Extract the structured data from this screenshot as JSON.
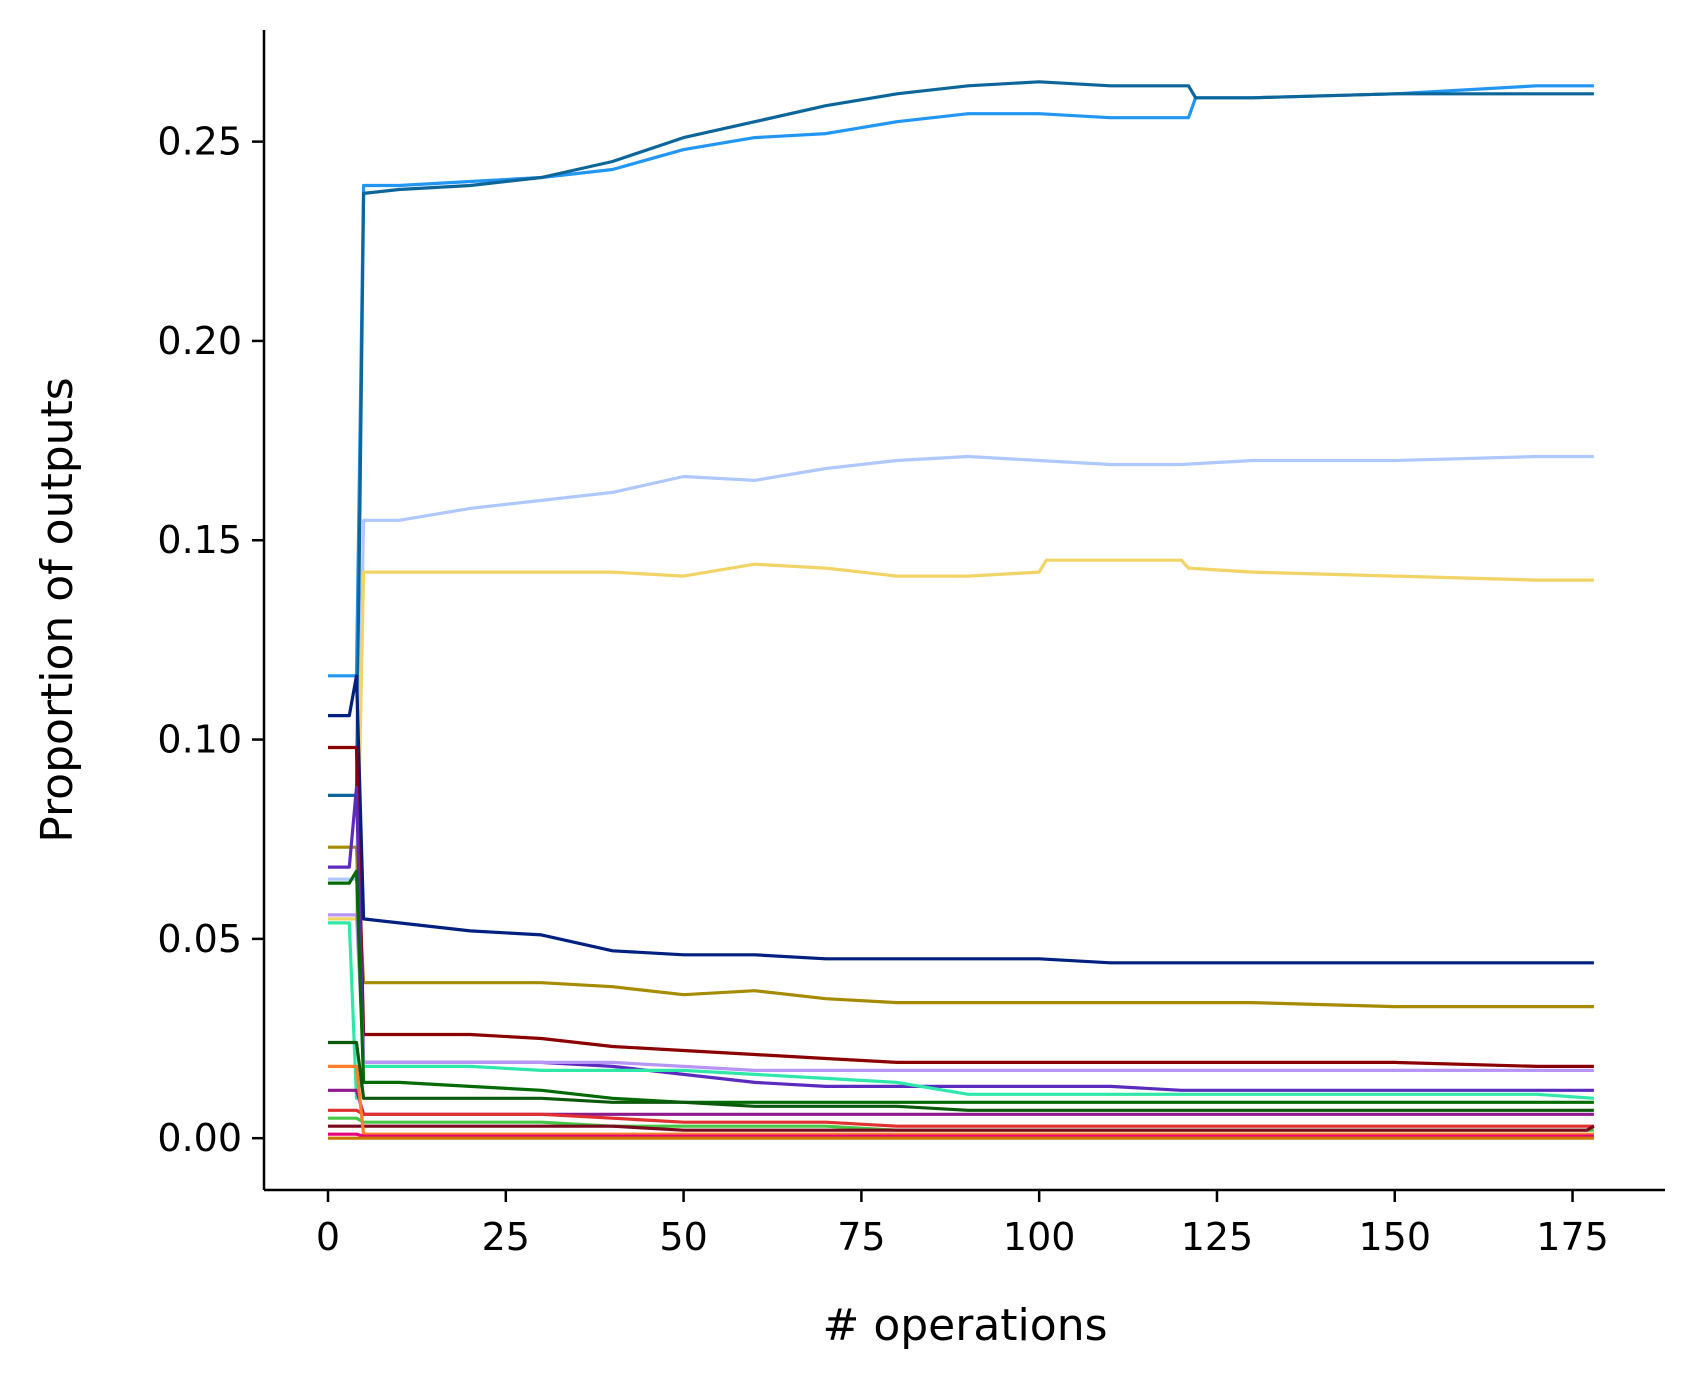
{
  "chart_data": {
    "type": "line",
    "title": "",
    "xlabel": "# operations",
    "ylabel": "Proportion of outputs",
    "xlim": [
      -9,
      188
    ],
    "ylim": [
      -0.013,
      0.278
    ],
    "xticks": [
      0,
      25,
      50,
      75,
      100,
      125,
      150,
      175
    ],
    "yticks": [
      0.0,
      0.05,
      0.1,
      0.15,
      0.2,
      0.25
    ],
    "ytick_labels": [
      "0.00",
      "0.05",
      "0.10",
      "0.15",
      "0.20",
      "0.25"
    ],
    "grid": false,
    "legend": "none",
    "series": [
      {
        "color": "#2196F3",
        "x": [
          0,
          4,
          5,
          10,
          20,
          30,
          40,
          50,
          60,
          70,
          80,
          90,
          100,
          110,
          120,
          121,
          122,
          130,
          150,
          170,
          178
        ],
        "values": [
          0.116,
          0.116,
          0.239,
          0.239,
          0.24,
          0.241,
          0.243,
          0.248,
          0.251,
          0.252,
          0.255,
          0.257,
          0.257,
          0.256,
          0.256,
          0.256,
          0.261,
          0.261,
          0.262,
          0.264,
          0.264
        ]
      },
      {
        "color": "#0D6699",
        "x": [
          0,
          4,
          5,
          10,
          20,
          30,
          40,
          50,
          60,
          70,
          80,
          90,
          100,
          110,
          120,
          121,
          122,
          130,
          150,
          170,
          178
        ],
        "values": [
          0.086,
          0.086,
          0.237,
          0.238,
          0.239,
          0.241,
          0.245,
          0.251,
          0.255,
          0.259,
          0.262,
          0.264,
          0.265,
          0.264,
          0.264,
          0.264,
          0.261,
          0.261,
          0.262,
          0.262,
          0.262
        ]
      },
      {
        "color": "#AFC8FF",
        "x": [
          0,
          4,
          5,
          10,
          20,
          30,
          40,
          50,
          60,
          70,
          80,
          90,
          100,
          110,
          120,
          130,
          150,
          170,
          178
        ],
        "values": [
          0.065,
          0.065,
          0.155,
          0.155,
          0.158,
          0.16,
          0.162,
          0.166,
          0.165,
          0.168,
          0.17,
          0.171,
          0.17,
          0.169,
          0.169,
          0.17,
          0.17,
          0.171,
          0.171
        ]
      },
      {
        "color": "#F2D466",
        "x": [
          0,
          4,
          5,
          10,
          20,
          30,
          40,
          50,
          60,
          70,
          80,
          90,
          100,
          101,
          110,
          120,
          121,
          130,
          150,
          170,
          178
        ],
        "values": [
          0.055,
          0.055,
          0.142,
          0.142,
          0.142,
          0.142,
          0.142,
          0.141,
          0.144,
          0.143,
          0.141,
          0.141,
          0.142,
          0.145,
          0.145,
          0.145,
          0.143,
          0.142,
          0.141,
          0.14,
          0.14
        ]
      },
      {
        "color": "#002080",
        "x": [
          0,
          3,
          4,
          5,
          10,
          20,
          30,
          40,
          50,
          60,
          70,
          80,
          90,
          100,
          110,
          120,
          130,
          150,
          170,
          178
        ],
        "values": [
          0.106,
          0.106,
          0.116,
          0.055,
          0.054,
          0.052,
          0.051,
          0.047,
          0.046,
          0.046,
          0.045,
          0.045,
          0.045,
          0.045,
          0.044,
          0.044,
          0.044,
          0.044,
          0.044,
          0.044
        ]
      },
      {
        "color": "#A68A00",
        "x": [
          0,
          3,
          4,
          5,
          10,
          20,
          30,
          40,
          50,
          60,
          70,
          80,
          90,
          100,
          110,
          120,
          130,
          150,
          170,
          178
        ],
        "values": [
          0.073,
          0.073,
          0.073,
          0.039,
          0.039,
          0.039,
          0.039,
          0.038,
          0.036,
          0.037,
          0.035,
          0.034,
          0.034,
          0.034,
          0.034,
          0.034,
          0.034,
          0.033,
          0.033,
          0.033
        ]
      },
      {
        "color": "#8B0000",
        "x": [
          0,
          4,
          5,
          10,
          20,
          30,
          40,
          50,
          60,
          70,
          80,
          90,
          100,
          110,
          120,
          130,
          150,
          170,
          178
        ],
        "values": [
          0.098,
          0.098,
          0.026,
          0.026,
          0.026,
          0.025,
          0.023,
          0.022,
          0.021,
          0.02,
          0.019,
          0.019,
          0.019,
          0.019,
          0.019,
          0.019,
          0.019,
          0.018,
          0.018
        ]
      },
      {
        "color": "#5B2BC0",
        "x": [
          0,
          3,
          4,
          5,
          10,
          20,
          30,
          40,
          50,
          60,
          70,
          80,
          90,
          100,
          110,
          120,
          130,
          150,
          170,
          178
        ],
        "values": [
          0.068,
          0.068,
          0.088,
          0.019,
          0.019,
          0.019,
          0.019,
          0.018,
          0.016,
          0.014,
          0.013,
          0.013,
          0.013,
          0.013,
          0.013,
          0.012,
          0.012,
          0.012,
          0.012,
          0.012
        ]
      },
      {
        "color": "#B695F5",
        "x": [
          0,
          4,
          5,
          10,
          20,
          30,
          40,
          50,
          60,
          70,
          80,
          90,
          100,
          110,
          120,
          130,
          150,
          170,
          178
        ],
        "values": [
          0.056,
          0.056,
          0.019,
          0.019,
          0.019,
          0.019,
          0.019,
          0.018,
          0.017,
          0.017,
          0.017,
          0.017,
          0.017,
          0.017,
          0.017,
          0.017,
          0.017,
          0.017,
          0.017
        ]
      },
      {
        "color": "#2EE8A8",
        "x": [
          0,
          3,
          4,
          5,
          10,
          20,
          30,
          40,
          50,
          60,
          70,
          80,
          90,
          100,
          110,
          120,
          130,
          150,
          170,
          178
        ],
        "values": [
          0.054,
          0.054,
          0.01,
          0.018,
          0.018,
          0.018,
          0.017,
          0.017,
          0.017,
          0.016,
          0.015,
          0.014,
          0.011,
          0.011,
          0.011,
          0.011,
          0.011,
          0.011,
          0.011,
          0.01
        ]
      },
      {
        "color": "#006B00",
        "x": [
          0,
          3,
          4,
          5,
          10,
          20,
          30,
          40,
          50,
          60,
          70,
          80,
          90,
          100,
          110,
          120,
          130,
          150,
          170,
          178
        ],
        "values": [
          0.064,
          0.064,
          0.067,
          0.014,
          0.014,
          0.013,
          0.012,
          0.01,
          0.009,
          0.009,
          0.009,
          0.009,
          0.009,
          0.009,
          0.009,
          0.009,
          0.009,
          0.009,
          0.009,
          0.009
        ]
      },
      {
        "color": "#0B5A0B",
        "x": [
          0,
          3,
          4,
          5,
          10,
          20,
          30,
          40,
          50,
          60,
          70,
          80,
          90,
          100,
          110,
          120,
          130,
          150,
          170,
          178
        ],
        "values": [
          0.024,
          0.024,
          0.024,
          0.01,
          0.01,
          0.01,
          0.01,
          0.009,
          0.009,
          0.008,
          0.008,
          0.008,
          0.007,
          0.007,
          0.007,
          0.007,
          0.007,
          0.007,
          0.007,
          0.007
        ]
      },
      {
        "color": "#8E1A8E",
        "x": [
          0,
          3,
          4,
          5,
          10,
          20,
          30,
          40,
          50,
          60,
          70,
          80,
          90,
          100,
          110,
          120,
          130,
          150,
          170,
          178
        ],
        "values": [
          0.012,
          0.012,
          0.012,
          0.006,
          0.006,
          0.006,
          0.006,
          0.006,
          0.006,
          0.006,
          0.006,
          0.006,
          0.006,
          0.006,
          0.006,
          0.006,
          0.006,
          0.006,
          0.006,
          0.006
        ]
      },
      {
        "color": "#E03030",
        "x": [
          0,
          3,
          4,
          5,
          10,
          20,
          30,
          40,
          50,
          60,
          70,
          80,
          90,
          100,
          110,
          120,
          130,
          150,
          170,
          178
        ],
        "values": [
          0.007,
          0.007,
          0.007,
          0.006,
          0.006,
          0.006,
          0.006,
          0.005,
          0.004,
          0.004,
          0.004,
          0.003,
          0.003,
          0.003,
          0.003,
          0.003,
          0.003,
          0.003,
          0.003,
          0.003
        ]
      },
      {
        "color": "#46C846",
        "x": [
          0,
          3,
          4,
          5,
          10,
          20,
          30,
          40,
          50,
          60,
          70,
          80,
          90,
          100,
          110,
          120,
          130,
          150,
          170,
          178
        ],
        "values": [
          0.005,
          0.005,
          0.005,
          0.004,
          0.004,
          0.004,
          0.004,
          0.003,
          0.003,
          0.003,
          0.003,
          0.002,
          0.002,
          0.002,
          0.002,
          0.002,
          0.002,
          0.002,
          0.002,
          0.002
        ]
      },
      {
        "color": "#7A0A1E",
        "x": [
          0,
          3,
          4,
          5,
          10,
          20,
          30,
          40,
          50,
          60,
          70,
          80,
          90,
          100,
          110,
          120,
          130,
          150,
          170,
          177,
          178
        ],
        "values": [
          0.003,
          0.003,
          0.003,
          0.003,
          0.003,
          0.003,
          0.003,
          0.003,
          0.002,
          0.002,
          0.002,
          0.002,
          0.002,
          0.002,
          0.002,
          0.002,
          0.002,
          0.002,
          0.002,
          0.002,
          0.003
        ]
      },
      {
        "color": "#FF7F2A",
        "x": [
          0,
          3,
          4,
          5,
          10,
          20,
          30,
          40,
          50,
          60,
          70,
          80,
          90,
          100,
          110,
          120,
          130,
          150,
          170,
          178
        ],
        "values": [
          0.018,
          0.018,
          0.018,
          0.001,
          0.001,
          0.001,
          0.001,
          0.001,
          0.001,
          0.001,
          0.001,
          0.001,
          0.001,
          0.001,
          0.001,
          0.001,
          0.001,
          0.001,
          0.001,
          0.001
        ]
      },
      {
        "color": "#E6007E",
        "x": [
          0,
          3,
          4,
          5,
          10,
          20,
          30,
          40,
          50,
          60,
          70,
          80,
          90,
          100,
          110,
          120,
          130,
          150,
          170,
          178
        ],
        "values": [
          0.001,
          0.001,
          0.001,
          0.0005,
          0.0005,
          0.0005,
          0.0005,
          0.0005,
          0.0005,
          0.0005,
          0.0005,
          0.0005,
          0.0005,
          0.0005,
          0.0005,
          0.0005,
          0.0005,
          0.0005,
          0.0005,
          0.0005
        ]
      },
      {
        "color": "#C87800",
        "x": [
          0,
          3,
          4,
          5,
          10,
          20,
          30,
          40,
          50,
          60,
          70,
          80,
          90,
          100,
          110,
          120,
          130,
          150,
          170,
          178
        ],
        "values": [
          0.0,
          0.0,
          0.0,
          0.0,
          0.0,
          0.0,
          0.0,
          0.0,
          0.0,
          0.0,
          0.0,
          0.0,
          0.0,
          0.0,
          0.0,
          0.0,
          0.0,
          0.0,
          0.0,
          0.0
        ]
      }
    ]
  }
}
